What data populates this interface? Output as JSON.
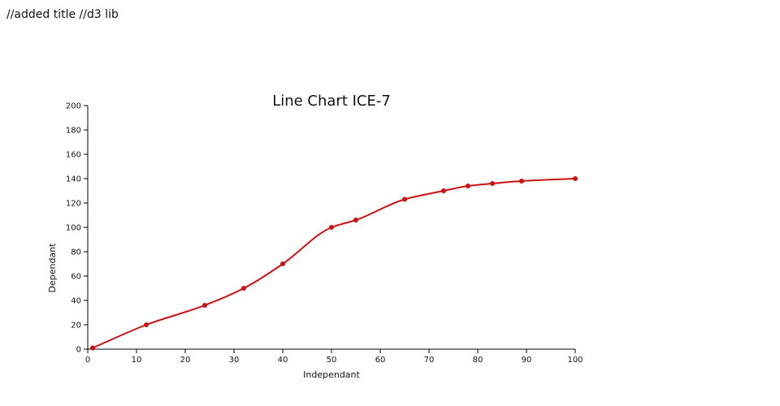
{
  "page": {
    "note": "//added title //d3 lib"
  },
  "colors": {
    "line": "#cc1111",
    "point": "#cc1111"
  },
  "chart_data": {
    "type": "line",
    "title": "Line Chart ICE-7",
    "xlabel": "Independant",
    "ylabel": "Dependant",
    "xlim": [
      0,
      100
    ],
    "ylim": [
      0,
      200
    ],
    "xticks": [
      0,
      10,
      20,
      30,
      40,
      50,
      60,
      70,
      80,
      90,
      100
    ],
    "yticks": [
      0,
      20,
      40,
      60,
      80,
      100,
      120,
      140,
      160,
      180,
      200
    ],
    "grid": false,
    "legend": "none",
    "curve": "smooth",
    "x": [
      1,
      12,
      24,
      32,
      40,
      50,
      55,
      65,
      73,
      78,
      83,
      89,
      100
    ],
    "y": [
      1,
      20,
      36,
      50,
      70,
      100,
      106,
      123,
      130,
      134,
      136,
      138,
      140
    ]
  }
}
